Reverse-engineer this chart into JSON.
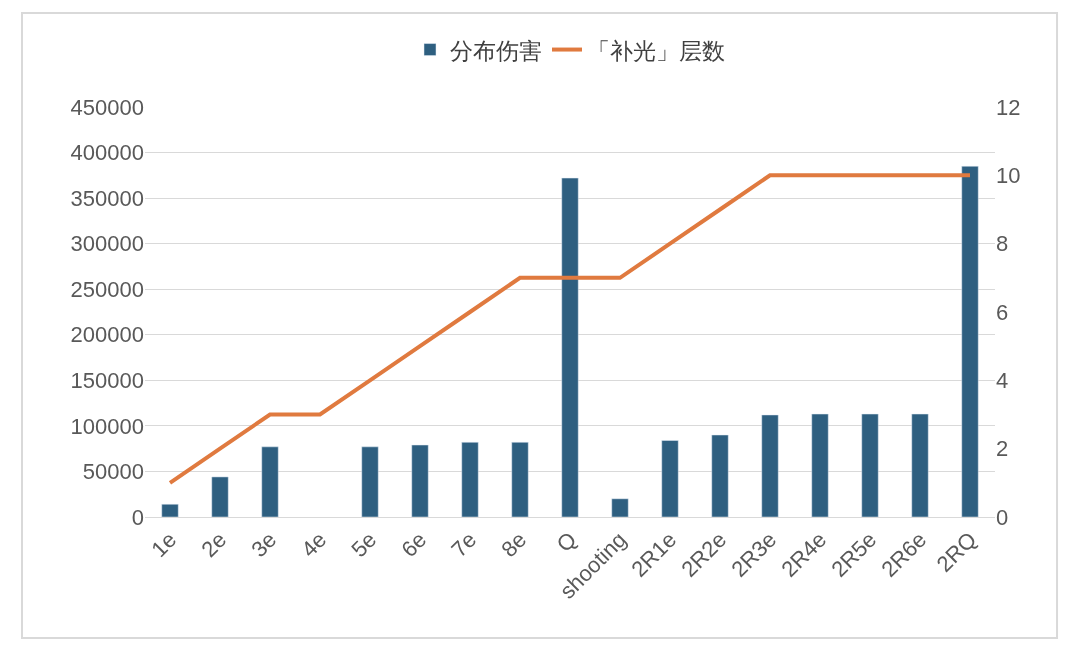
{
  "chart_data": {
    "type": "bar",
    "categories": [
      "1e",
      "2e",
      "3e",
      "4e",
      "5e",
      "6e",
      "7e",
      "8e",
      "Q",
      "shooting",
      "2R1e",
      "2R2e",
      "2R3e",
      "2R4e",
      "2R5e",
      "2R6e",
      "2RQ"
    ],
    "series": [
      {
        "name": "分布伤害",
        "color": "#2e5f80",
        "values": [
          14000,
          44000,
          77000,
          null,
          77000,
          79000,
          82000,
          82000,
          372000,
          20000,
          84000,
          90000,
          112000,
          113000,
          113000,
          113000,
          385000
        ]
      },
      {
        "name": "「补光」层数",
        "type": "line",
        "axis": "y2",
        "color": "#e07a3f",
        "values": [
          1,
          2,
          3,
          3,
          4,
          5,
          6,
          7,
          7,
          7,
          8,
          9,
          10,
          10,
          10,
          10,
          10
        ]
      }
    ],
    "ylim": [
      0,
      450000
    ],
    "yticks": [
      0,
      50000,
      100000,
      150000,
      200000,
      250000,
      300000,
      350000,
      400000,
      450000
    ],
    "y2lim": [
      0,
      12
    ],
    "y2ticks": [
      0,
      2,
      4,
      6,
      8,
      10,
      12
    ],
    "grid": "y",
    "legend": "top",
    "marker": "none",
    "line_style": "solid"
  }
}
